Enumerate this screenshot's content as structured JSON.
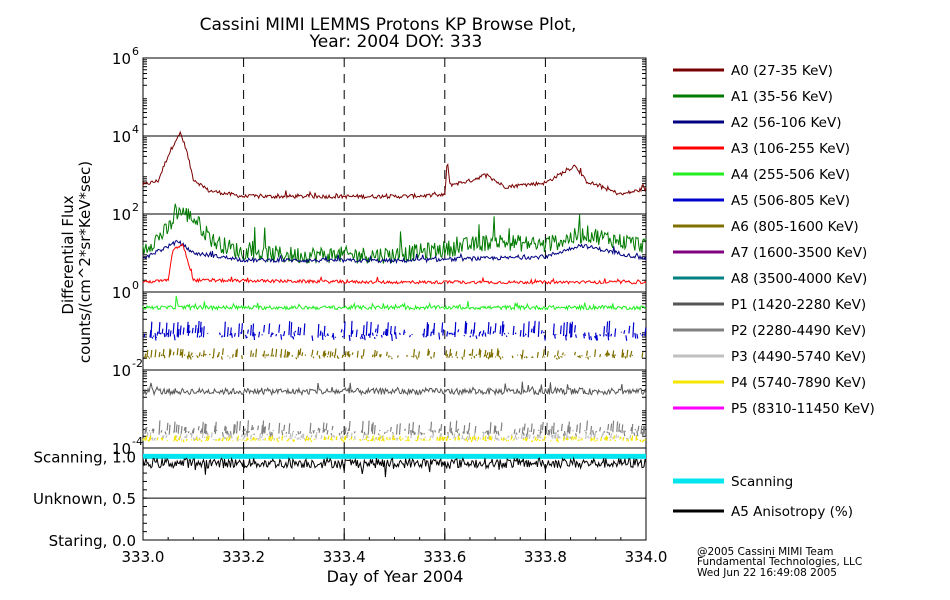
{
  "chart_data": [
    {
      "type": "line",
      "title_line1": "Cassini MIMI LEMMS Protons KP Browse Plot,",
      "title_line2": "Year: 2004 DOY: 333",
      "ylabel_line1": "Differential Flux",
      "ylabel_line2": "counts/(cm^2*sr*KeV*sec)",
      "xlabel": "Day of Year 2004",
      "xlim": [
        333.0,
        334.0
      ],
      "ylim_log10": [
        -4,
        6
      ],
      "y_tick_exponents": [
        "6",
        "4",
        "2",
        "0",
        "-2",
        "-4"
      ],
      "x_tick_labels": [
        "333.0",
        "333.2",
        "333.4",
        "333.6",
        "333.8",
        "334.0"
      ],
      "dashed_x_lines": [
        333.2,
        333.4,
        333.6,
        333.8
      ],
      "series": [
        {
          "name": "A0 (27-35 KeV)",
          "color": "#7a0000",
          "base_log": 2.62,
          "noise": 0.05,
          "points": [
            [
              333.0,
              2.75
            ],
            [
              333.03,
              2.85
            ],
            [
              333.05,
              3.5
            ],
            [
              333.065,
              3.9
            ],
            [
              333.075,
              4.05
            ],
            [
              333.085,
              3.7
            ],
            [
              333.1,
              2.9
            ],
            [
              333.13,
              2.6
            ],
            [
              333.2,
              2.45
            ],
            [
              333.3,
              2.45
            ],
            [
              333.5,
              2.45
            ],
            [
              333.6,
              2.48
            ],
            [
              333.605,
              3.4
            ],
            [
              333.61,
              2.75
            ],
            [
              333.65,
              2.85
            ],
            [
              333.68,
              3.0
            ],
            [
              333.72,
              2.7
            ],
            [
              333.8,
              2.8
            ],
            [
              333.86,
              3.25
            ],
            [
              333.88,
              2.85
            ],
            [
              333.95,
              2.5
            ],
            [
              334.0,
              2.65
            ]
          ]
        },
        {
          "name": "A1 (35-56 KeV)",
          "color": "#007a00",
          "base_log": 0.95,
          "noise": 0.22,
          "points": [
            [
              333.0,
              1.1
            ],
            [
              333.05,
              1.6
            ],
            [
              333.07,
              2.1
            ],
            [
              333.1,
              1.9
            ],
            [
              333.14,
              1.3
            ],
            [
              333.2,
              1.0
            ],
            [
              333.3,
              0.95
            ],
            [
              333.5,
              0.95
            ],
            [
              333.6,
              1.1
            ],
            [
              333.7,
              1.3
            ],
            [
              333.8,
              1.2
            ],
            [
              333.88,
              1.5
            ],
            [
              333.95,
              1.3
            ],
            [
              334.0,
              1.2
            ]
          ]
        },
        {
          "name": "A2 (56-106 KeV)",
          "color": "#000080",
          "base_log": 0.85,
          "noise": 0.05,
          "points": [
            [
              333.0,
              0.85
            ],
            [
              333.07,
              1.3
            ],
            [
              333.1,
              1.0
            ],
            [
              333.2,
              0.82
            ],
            [
              333.5,
              0.8
            ],
            [
              333.8,
              0.9
            ],
            [
              333.87,
              1.2
            ],
            [
              334.0,
              0.85
            ]
          ]
        },
        {
          "name": "A3 (106-255 KeV)",
          "color": "#ff0000",
          "base_log": 0.25,
          "noise": 0.04,
          "points": [
            [
              333.0,
              0.25
            ],
            [
              333.05,
              0.3
            ],
            [
              333.06,
              1.1
            ],
            [
              333.08,
              1.2
            ],
            [
              333.1,
              0.3
            ],
            [
              333.5,
              0.25
            ],
            [
              334.0,
              0.25
            ]
          ]
        },
        {
          "name": "A4 (255-506 KeV)",
          "color": "#22ee22",
          "base_log": -0.4,
          "noise": 0.05,
          "points": [
            [
              333.0,
              -0.4
            ],
            [
              333.065,
              -0.4
            ],
            [
              333.066,
              -0.05
            ],
            [
              333.07,
              -0.4
            ],
            [
              334.0,
              -0.4
            ]
          ]
        },
        {
          "name": "A5 (506-805 KeV)",
          "color": "#0000cc",
          "base_log": -1.1,
          "noise": 0.35,
          "sparse": true,
          "points": [
            [
              333.0,
              -1.1
            ],
            [
              334.0,
              -1.1
            ]
          ]
        },
        {
          "name": "A6 (805-1600 KeV)",
          "color": "#807000",
          "base_log": -1.65,
          "noise": 0.2,
          "sparse": true,
          "points": [
            [
              333.0,
              -1.65
            ],
            [
              334.0,
              -1.65
            ]
          ]
        },
        {
          "name": "A7 (1600-3500 KeV)",
          "color": "#800080",
          "base_log": null,
          "noise": 0,
          "points": []
        },
        {
          "name": "A8 (3500-4000 KeV)",
          "color": "#008080",
          "base_log": null,
          "noise": 0,
          "points": []
        },
        {
          "name": "P1 (1420-2280 KeV)",
          "color": "#555555",
          "base_log": -2.55,
          "noise": 0.08,
          "points": [
            [
              333.0,
              -2.55
            ],
            [
              334.0,
              -2.55
            ]
          ]
        },
        {
          "name": "P2 (2280-4490 KeV)",
          "color": "#808080",
          "base_log": -3.6,
          "noise": 0.3,
          "sparse": true,
          "points": [
            [
              333.0,
              -3.6
            ],
            [
              334.0,
              -3.6
            ]
          ]
        },
        {
          "name": "P3 (4490-5740 KeV)",
          "color": "#c0c0c0",
          "base_log": -3.75,
          "noise": 0.15,
          "sparse": true,
          "points": [
            [
              333.0,
              -3.75
            ],
            [
              334.0,
              -3.75
            ]
          ]
        },
        {
          "name": "P4 (5740-7890 KeV)",
          "color": "#f5e600",
          "base_log": -3.8,
          "noise": 0.12,
          "sparse": true,
          "points": [
            [
              333.0,
              -3.8
            ],
            [
              334.0,
              -3.8
            ]
          ]
        },
        {
          "name": "P5 (8310-11450 KeV)",
          "color": "#ff00ff",
          "base_log": null,
          "noise": 0,
          "points": []
        }
      ]
    },
    {
      "type": "line",
      "ylim": [
        0,
        1.1
      ],
      "y_tick_labels": [
        "Scanning, 1.0",
        "Unknown, 0.5",
        "Staring, 0.0"
      ],
      "y_tick_values": [
        1.0,
        0.5,
        0.0
      ],
      "series": [
        {
          "name": "Scanning",
          "color": "#00e5ee",
          "value": 1.0
        },
        {
          "name": "A5 Anisotropy (%)",
          "color": "#000000",
          "base": 0.92,
          "noise": 0.06
        }
      ]
    }
  ],
  "footer": {
    "line1": "@2005 Cassini MIMI Team",
    "line2": "Fundamental Technologies, LLC",
    "line3": "Wed Jun 22 16:49:08 2005"
  }
}
